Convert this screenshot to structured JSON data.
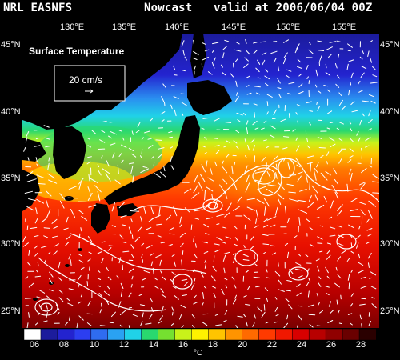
{
  "header": {
    "source": "NRL EASNFS",
    "product": "Nowcast",
    "valid": "valid at 2006/06/04 00Z"
  },
  "map": {
    "field_label": "Surface Temperature",
    "vector_scale_label": "20 cm/s",
    "lon_labels": [
      "130°E",
      "135°E",
      "140°E",
      "145°E",
      "150°E",
      "155°E"
    ],
    "lat_labels": [
      "45°N",
      "40°N",
      "35°N",
      "30°N",
      "25°N"
    ],
    "extent": {
      "lon": [
        127,
        159
      ],
      "lat": [
        23,
        46
      ]
    }
  },
  "colorbar": {
    "labels": [
      "06",
      "08",
      "10",
      "12",
      "14",
      "16",
      "18",
      "20",
      "22",
      "24",
      "26",
      "28"
    ],
    "unit": "°C",
    "colors": [
      "#ffffff",
      "#1c1c9c",
      "#2323cf",
      "#2c3ef0",
      "#2f6cf0",
      "#2aa2f2",
      "#20d2e8",
      "#29d86f",
      "#75e030",
      "#c8f21a",
      "#fff200",
      "#ffc400",
      "#ff9400",
      "#ff6a00",
      "#ff3a00",
      "#f01800",
      "#d80000",
      "#b80000",
      "#900000",
      "#6a0000",
      "#2a0000"
    ]
  }
}
